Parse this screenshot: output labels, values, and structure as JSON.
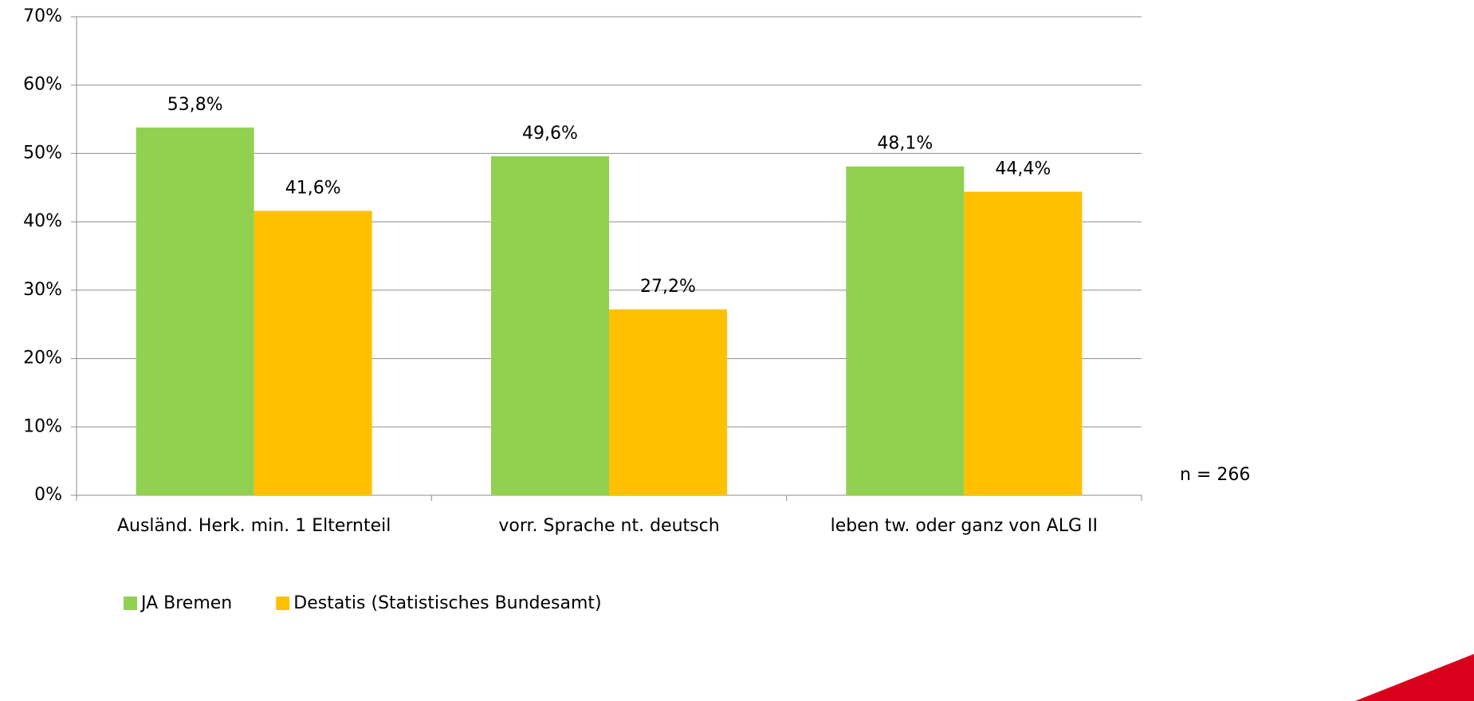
{
  "chart_data": {
    "type": "bar",
    "categories": [
      "Ausländ. Herk. min. 1 Elternteil",
      "vorr. Sprache nt. deutsch",
      "leben tw. oder ganz von ALG II"
    ],
    "series": [
      {
        "name": "JA Bremen",
        "color": "#92d050",
        "values": [
          53.8,
          49.6,
          48.1
        ],
        "value_labels": [
          "53,8%",
          "49,6%",
          "48,1%"
        ]
      },
      {
        "name": "Destatis (Statistisches Bundesamt)",
        "color": "#ffc000",
        "values": [
          41.6,
          27.2,
          44.4
        ],
        "value_labels": [
          "41,6%",
          "27,2%",
          "44,4%"
        ]
      }
    ],
    "ylim": [
      0,
      70
    ],
    "yticks": [
      {
        "value": 0,
        "label": "0%"
      },
      {
        "value": 10,
        "label": "10%"
      },
      {
        "value": 20,
        "label": "20%"
      },
      {
        "value": 30,
        "label": "30%"
      },
      {
        "value": 40,
        "label": "40%"
      },
      {
        "value": 50,
        "label": "50%"
      },
      {
        "value": 60,
        "label": "60%"
      },
      {
        "value": 70,
        "label": "70%"
      }
    ],
    "grid": true,
    "annotation": "n = 266"
  }
}
